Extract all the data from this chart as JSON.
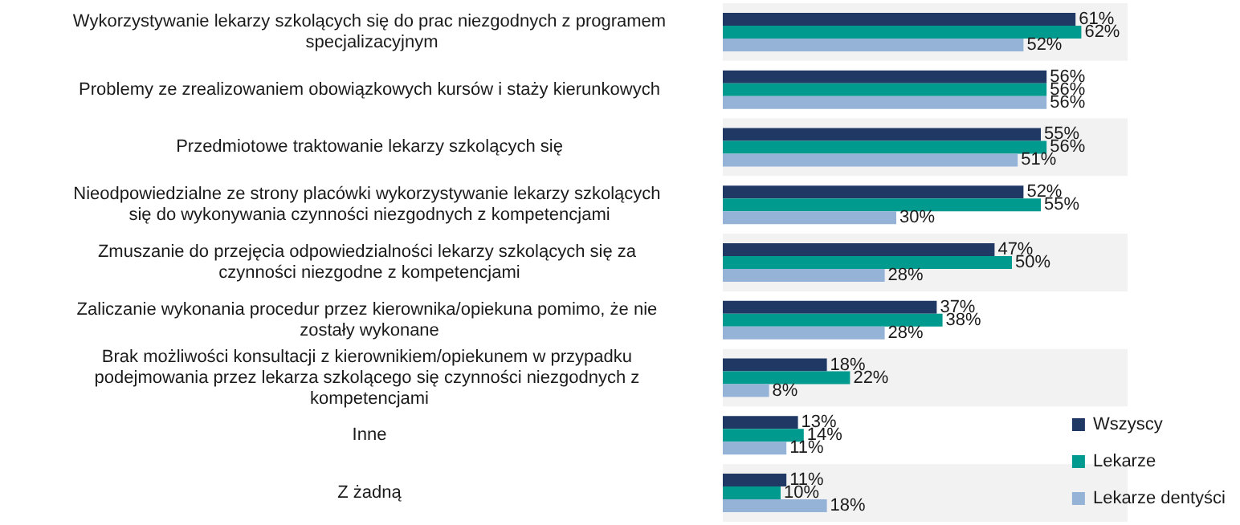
{
  "chart_data": {
    "type": "bar",
    "orientation": "horizontal",
    "legend": "bottom right",
    "categories": [
      "Wykorzystywanie lekarzy szkolących się do prac niezgodnych z programem specjalizacyjnym",
      "Problemy ze zrealizowaniem obowiązkowych kursów i staży kierunkowych",
      "Przedmiotowe traktowanie lekarzy szkolących się",
      "Nieodpowiedzialne ze strony placówki wykorzystywanie lekarzy szkolących się do wykonywania czynności niezgodnych z kompetencjami",
      "Zmuszanie do przejęcia odpowiedzialności lekarzy szkolących się za czynności niezgodne z kompetencjami",
      "Zaliczanie wykonania procedur przez kierownika/opiekuna pomimo, że nie zostały wykonane",
      "Brak możliwości konsultacji z kierownikiem/opiekunem w przypadku podejmowania przez lekarza szkolącego się czynności niezgodnych z kompetencjami",
      "Inne",
      "Z żadną"
    ],
    "series": [
      {
        "name": "Wszyscy",
        "color": "#1f3864",
        "values": [
          61,
          56,
          55,
          52,
          47,
          37,
          18,
          13,
          11
        ],
        "value_labels": [
          "61%",
          "56%",
          "55%",
          "52%",
          "47%",
          "37%",
          "18%",
          "13%",
          "11%"
        ]
      },
      {
        "name": "Lekarze",
        "color": "#009a8e",
        "values": [
          62,
          56,
          56,
          55,
          50,
          38,
          22,
          14,
          10
        ],
        "value_labels": [
          "62%",
          "56%",
          "56%",
          "55%",
          "50%",
          "38%",
          "22%",
          "14%",
          "10%"
        ]
      },
      {
        "name": "Lekarze dentyści",
        "color": "#95b3d7",
        "values": [
          52,
          56,
          51,
          30,
          28,
          28,
          8,
          11,
          18
        ],
        "value_labels": [
          "52%",
          "56%",
          "51%",
          "30%",
          "28%",
          "28%",
          "8%",
          "11%",
          "18%"
        ]
      }
    ]
  }
}
